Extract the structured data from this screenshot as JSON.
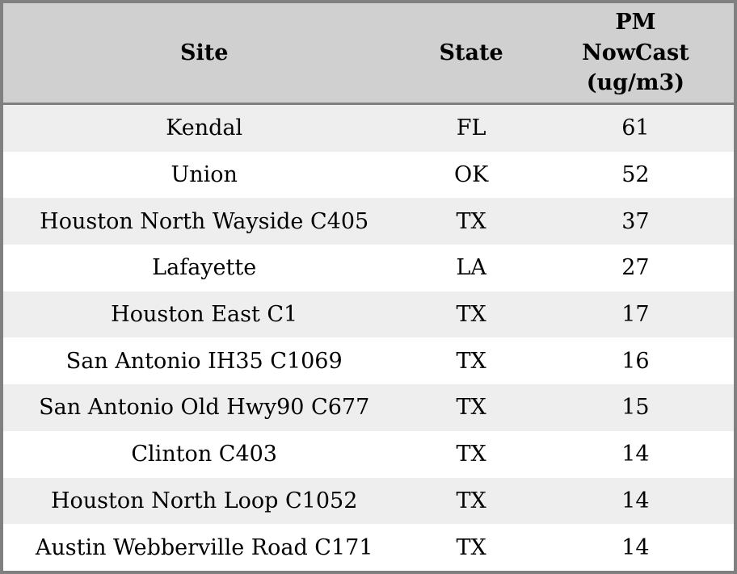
{
  "chart_data": {
    "type": "table",
    "columns": [
      "Site",
      "State",
      "PM NowCast (ug/m3)"
    ],
    "rows": [
      [
        "Kendal",
        "FL",
        61
      ],
      [
        "Union",
        "OK",
        52
      ],
      [
        "Houston North Wayside C405",
        "TX",
        37
      ],
      [
        "Lafayette",
        "LA",
        27
      ],
      [
        "Houston East C1",
        "TX",
        17
      ],
      [
        "San Antonio IH35 C1069",
        "TX",
        16
      ],
      [
        "San Antonio Old Hwy90 C677",
        "TX",
        15
      ],
      [
        "Clinton C403",
        "TX",
        14
      ],
      [
        "Houston North Loop C1052",
        "TX",
        14
      ],
      [
        "Austin Webberville Road C171",
        "TX",
        14
      ]
    ]
  },
  "header": {
    "site": "Site",
    "state": "State",
    "pm": "PM\nNowCast\n(ug/m3)"
  },
  "colors": {
    "header_bg": "#d0d0d0",
    "stripe_bg": "#eeeeee",
    "row_bg": "#ffffff",
    "border": "#808080",
    "text": "#000000"
  }
}
